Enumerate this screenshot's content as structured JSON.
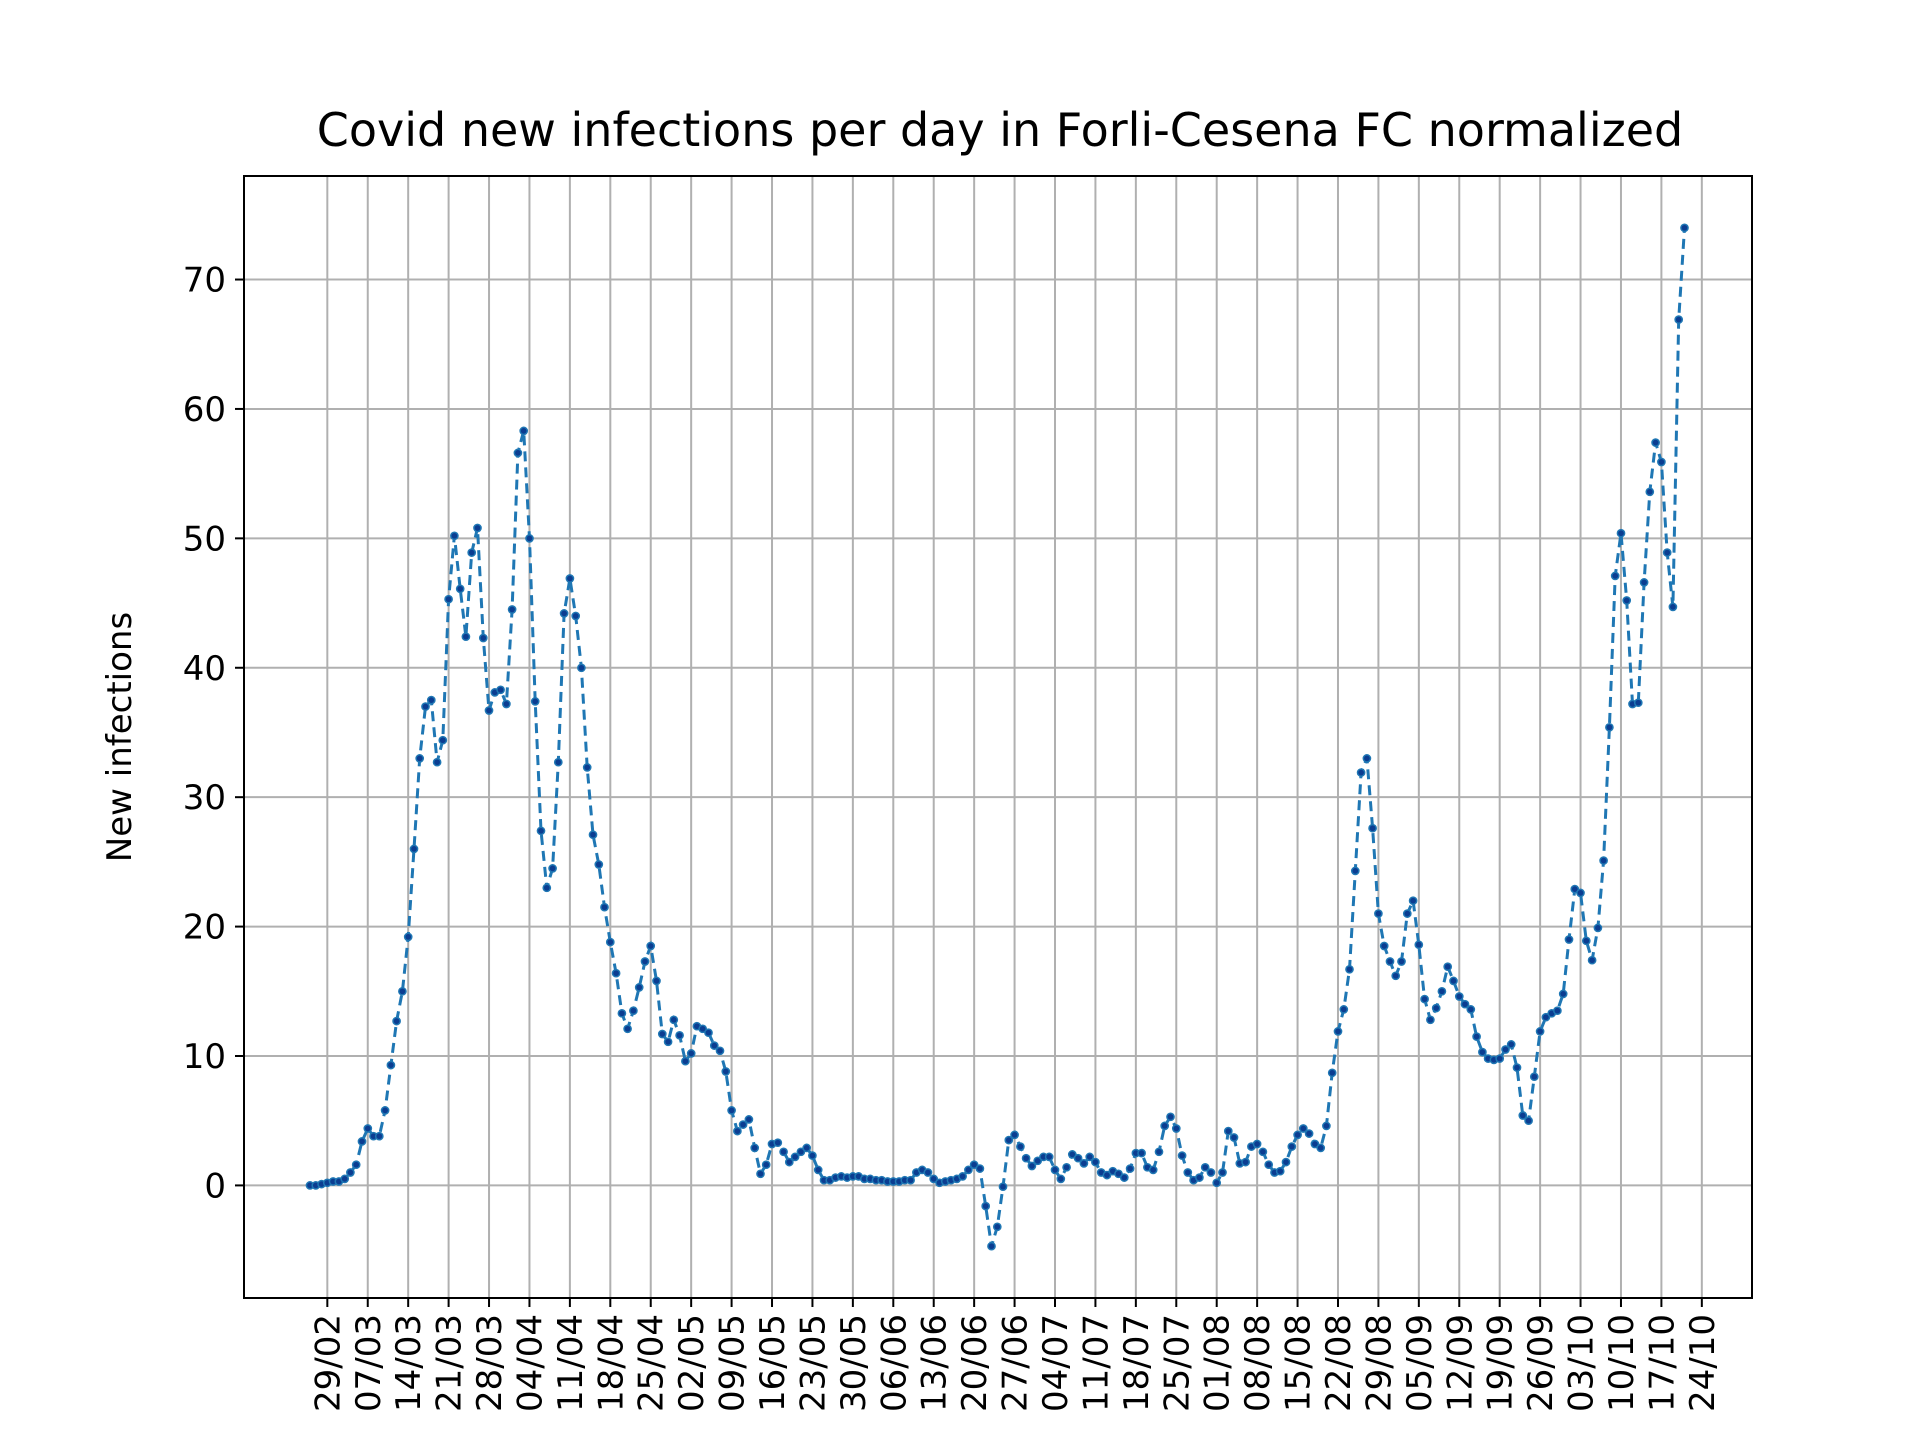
{
  "chart_data": {
    "type": "line",
    "title": "Covid new infections per day in Forli-Cesena FC normalized",
    "xlabel": "",
    "ylabel": "New infections",
    "ylim": [
      -8.7,
      78
    ],
    "yticks": [
      0,
      10,
      20,
      30,
      40,
      50,
      60,
      70
    ],
    "grid": true,
    "line_color": "#1f77b4",
    "marker_color": "#0b3d91",
    "line_style": "dashed",
    "x_start": "2020-02-26",
    "x_tick_labels": [
      "29/02",
      "07/03",
      "14/03",
      "21/03",
      "28/03",
      "04/04",
      "11/04",
      "18/04",
      "25/04",
      "02/05",
      "09/05",
      "16/05",
      "23/05",
      "30/05",
      "06/06",
      "13/06",
      "20/06",
      "27/06",
      "04/07",
      "11/07",
      "18/07",
      "25/07",
      "01/08",
      "08/08",
      "15/08",
      "22/08",
      "29/08",
      "05/09",
      "12/09",
      "19/09",
      "26/09",
      "03/10",
      "10/10",
      "17/10",
      "24/10"
    ],
    "values": [
      0.0,
      0.0,
      0.1,
      0.2,
      0.3,
      0.3,
      0.5,
      1.0,
      1.6,
      3.4,
      4.4,
      3.8,
      3.8,
      5.8,
      9.3,
      12.7,
      15.0,
      19.2,
      26.0,
      33.0,
      37.0,
      37.5,
      32.7,
      34.4,
      45.3,
      50.2,
      46.1,
      42.4,
      48.9,
      50.8,
      42.3,
      36.7,
      38.1,
      38.3,
      37.2,
      44.5,
      56.6,
      58.3,
      50.0,
      37.4,
      27.4,
      23.0,
      24.5,
      32.7,
      44.2,
      46.9,
      44.0,
      40.0,
      32.3,
      27.1,
      24.8,
      21.5,
      18.8,
      16.4,
      13.3,
      12.1,
      13.5,
      15.3,
      17.3,
      18.5,
      15.8,
      11.7,
      11.1,
      12.8,
      11.6,
      9.6,
      10.2,
      12.3,
      12.1,
      11.8,
      10.8,
      10.4,
      8.8,
      5.8,
      4.2,
      4.7,
      5.1,
      2.9,
      0.9,
      1.6,
      3.2,
      3.3,
      2.6,
      1.8,
      2.2,
      2.6,
      2.9,
      2.3,
      1.2,
      0.4,
      0.4,
      0.6,
      0.7,
      0.6,
      0.7,
      0.7,
      0.5,
      0.5,
      0.4,
      0.4,
      0.3,
      0.3,
      0.3,
      0.4,
      0.4,
      1.0,
      1.2,
      1.0,
      0.5,
      0.2,
      0.3,
      0.4,
      0.5,
      0.7,
      1.2,
      1.6,
      1.3,
      -1.6,
      -4.7,
      -3.2,
      -0.1,
      3.5,
      3.9,
      3.0,
      2.1,
      1.5,
      1.9,
      2.2,
      2.2,
      1.2,
      0.5,
      1.4,
      2.4,
      2.1,
      1.7,
      2.2,
      1.8,
      1.0,
      0.8,
      1.1,
      0.9,
      0.6,
      1.3,
      2.5,
      2.5,
      1.4,
      1.2,
      2.6,
      4.6,
      5.3,
      4.4,
      2.3,
      1.0,
      0.4,
      0.6,
      1.4,
      1.0,
      0.2,
      1.0,
      4.2,
      3.7,
      1.7,
      1.8,
      3.0,
      3.2,
      2.6,
      1.6,
      1.0,
      1.1,
      1.8,
      3.0,
      3.9,
      4.4,
      4.0,
      3.2,
      2.9,
      4.6,
      8.7,
      11.9,
      13.6,
      16.7,
      24.3,
      31.9,
      33.0,
      27.6,
      21.0,
      18.5,
      17.3,
      16.2,
      17.3,
      21.0,
      22.0,
      18.6,
      14.4,
      12.8,
      13.7,
      15.0,
      16.9,
      15.8,
      14.6,
      14.0,
      13.6,
      11.5,
      10.3,
      9.8,
      9.7,
      9.8,
      10.5,
      10.9,
      9.1,
      5.4,
      5.0,
      8.4,
      11.9,
      13.0,
      13.3,
      13.5,
      14.8,
      19.0,
      22.9,
      22.6,
      18.9,
      17.4,
      19.9,
      25.1,
      35.4,
      47.1,
      50.4,
      45.2,
      37.2,
      37.3,
      46.6,
      53.6,
      57.4,
      55.9,
      48.9,
      44.7,
      66.9,
      74.0
    ]
  }
}
